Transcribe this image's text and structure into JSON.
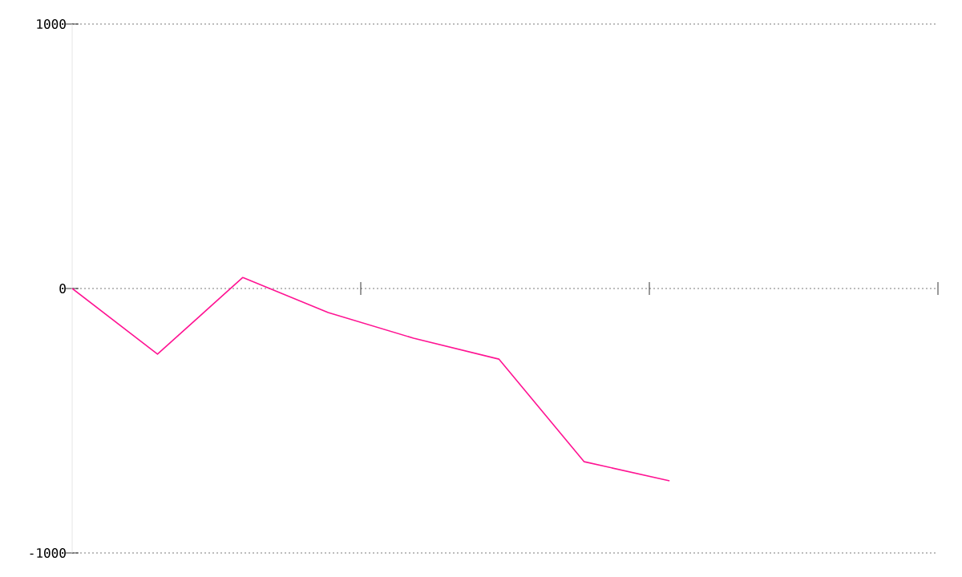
{
  "chart_data": {
    "type": "line",
    "categories": [
      null,
      null,
      null,
      null,
      null,
      null,
      null,
      null
    ],
    "values": [
      0,
      -248,
      42,
      -91,
      -188,
      -267,
      -655,
      -727
    ],
    "color": "#ff1493",
    "ylim": [
      -1000,
      1000
    ],
    "yticks": [
      {
        "value": -1000,
        "label": "-1000"
      },
      {
        "value": 0,
        "label": "0"
      },
      {
        "value": 1000,
        "label": "1000"
      }
    ],
    "grid": "y",
    "tick_labels": "y"
  }
}
